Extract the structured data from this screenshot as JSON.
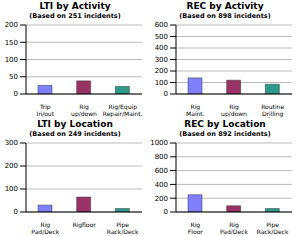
{
  "chart_data": [
    {
      "type": "bar",
      "title": "LTI by Activity",
      "subtitle": "(Based on 251 incidents)",
      "categories": [
        "Trip In/out",
        "Rig up/down",
        "Rig/Equip Repair/Maint."
      ],
      "values": [
        25,
        38,
        22
      ],
      "colors": [
        "#8080ff",
        "#993366",
        "#2e9a8a"
      ],
      "ylim": [
        0,
        200
      ],
      "yticks": [
        0,
        50,
        100,
        150,
        200
      ],
      "grid": true
    },
    {
      "type": "bar",
      "title": "REC by Activity",
      "subtitle": "(Based on 898 incidents)",
      "categories": [
        "Rig Maint.",
        "Rig up/down",
        "Routine Drilling Ops"
      ],
      "values": [
        140,
        120,
        85
      ],
      "colors": [
        "#8080ff",
        "#993366",
        "#2e9a8a"
      ],
      "ylim": [
        0,
        600
      ],
      "yticks": [
        0,
        100,
        200,
        300,
        400,
        500,
        600
      ],
      "grid": true
    },
    {
      "type": "bar",
      "title": "LTI by Location",
      "subtitle": "(Based on 249 incidents)",
      "categories": [
        "Rig Pad/Deck",
        "Rigfloor",
        "Pipe Rack/Deck"
      ],
      "values": [
        30,
        65,
        15
      ],
      "colors": [
        "#8080ff",
        "#993366",
        "#2e9a8a"
      ],
      "ylim": [
        0,
        300
      ],
      "yticks": [
        0,
        100,
        200,
        300
      ],
      "grid": true
    },
    {
      "type": "bar",
      "title": "REC by Location",
      "subtitle": "(Based on 892 incidents)",
      "categories": [
        "Rig Floor",
        "Rig Pad/Deck",
        "Pipe Rack/Deck"
      ],
      "values": [
        250,
        90,
        50
      ],
      "colors": [
        "#8080ff",
        "#993366",
        "#2e9a8a"
      ],
      "ylim": [
        0,
        1000
      ],
      "yticks": [
        0,
        200,
        400,
        600,
        800,
        1000
      ],
      "grid": true
    }
  ]
}
